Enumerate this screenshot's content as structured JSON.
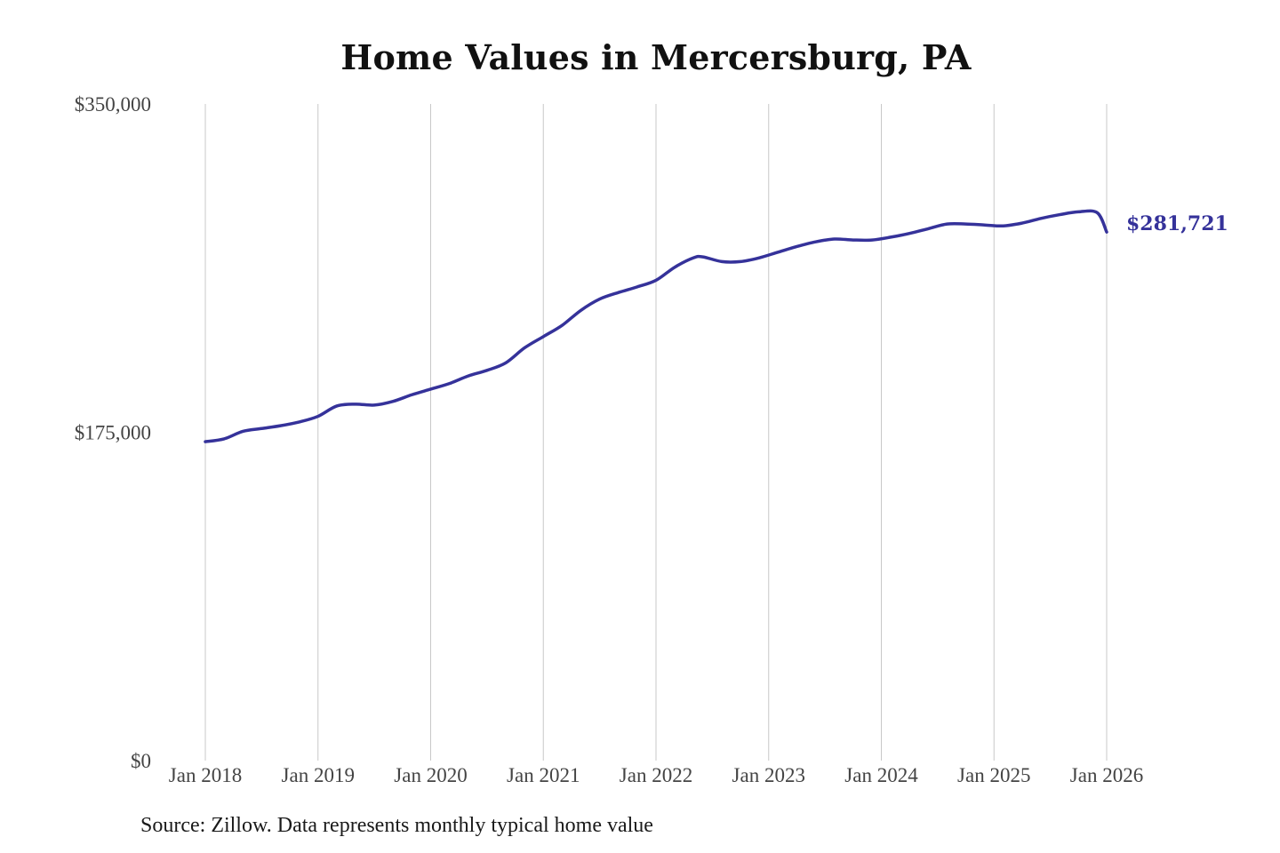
{
  "title": "Home Values in Mercersburg, PA",
  "source_note": "Source: Zillow. Data represents monthly typical home value",
  "colors": {
    "line": "#35329a",
    "grid": "#c8c8c8",
    "tick_text": "#444444"
  },
  "chart_data": {
    "type": "line",
    "title": "Home Values in Mercersburg, PA",
    "xlabel": "",
    "ylabel": "",
    "ylim": [
      0,
      350000
    ],
    "y_ticks": [
      {
        "value": 0,
        "label": "$0"
      },
      {
        "value": 175000,
        "label": "$175,000"
      },
      {
        "value": 350000,
        "label": "$350,000"
      }
    ],
    "x_ticks": [
      {
        "value": "2018-01",
        "label": "Jan 2018"
      },
      {
        "value": "2019-01",
        "label": "Jan 2019"
      },
      {
        "value": "2020-01",
        "label": "Jan 2020"
      },
      {
        "value": "2021-01",
        "label": "Jan 2021"
      },
      {
        "value": "2022-01",
        "label": "Jan 2022"
      },
      {
        "value": "2023-01",
        "label": "Jan 2023"
      },
      {
        "value": "2024-01",
        "label": "Jan 2024"
      },
      {
        "value": "2025-01",
        "label": "Jan 2025"
      },
      {
        "value": "2026-01",
        "label": "Jan 2026"
      }
    ],
    "xlim": [
      "2018-01",
      "2026-01"
    ],
    "grid": "vertical",
    "end_label": "$281,721",
    "series": [
      {
        "x": [
          "2018-01",
          "2018-03",
          "2018-05",
          "2018-07",
          "2018-09",
          "2018-11",
          "2019-01",
          "2019-03",
          "2019-05",
          "2019-07",
          "2019-09",
          "2019-11",
          "2020-01",
          "2020-03",
          "2020-05",
          "2020-07",
          "2020-09",
          "2020-11",
          "2021-01",
          "2021-03",
          "2021-05",
          "2021-07",
          "2021-09",
          "2021-11",
          "2022-01",
          "2022-03",
          "2022-05",
          "2022-06",
          "2022-08",
          "2022-10",
          "2022-12",
          "2023-02",
          "2023-04",
          "2023-06",
          "2023-08",
          "2023-10",
          "2023-12",
          "2024-02",
          "2024-04",
          "2024-06",
          "2024-08",
          "2024-10",
          "2024-12",
          "2025-02",
          "2025-04",
          "2025-06",
          "2025-08",
          "2025-10",
          "2025-12",
          "2026-01"
        ],
        "y": [
          170000,
          171500,
          175500,
          177000,
          178500,
          180500,
          183500,
          189000,
          190000,
          189500,
          191500,
          195000,
          198000,
          201000,
          205000,
          208000,
          212000,
          220000,
          226000,
          232000,
          240000,
          246000,
          249500,
          252500,
          256000,
          263000,
          268000,
          268500,
          266000,
          266000,
          268000,
          271000,
          274000,
          276500,
          278000,
          277500,
          277500,
          279000,
          281000,
          283500,
          286000,
          286000,
          285500,
          285000,
          286500,
          289000,
          291000,
          292500,
          292000,
          281721
        ]
      }
    ]
  }
}
